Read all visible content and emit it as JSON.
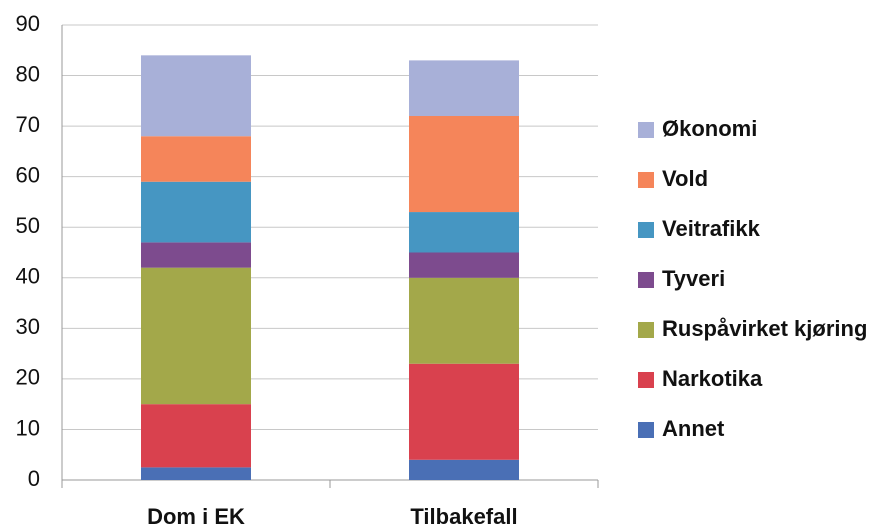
{
  "chart_data": {
    "type": "stacked_bar",
    "categories": [
      "Dom i EK",
      "Tilbakefall"
    ],
    "series": [
      {
        "name": "Annet",
        "color": "#4a6fb5",
        "values": [
          2.5,
          4
        ]
      },
      {
        "name": "Narkotika",
        "color": "#d9414e",
        "values": [
          12.5,
          19
        ]
      },
      {
        "name": "Ruspåvirket kjøring",
        "color": "#a3a84a",
        "values": [
          27,
          17
        ]
      },
      {
        "name": "Tyveri",
        "color": "#7d4b8e",
        "values": [
          5,
          5
        ]
      },
      {
        "name": "Veitrafikk",
        "color": "#4696c2",
        "values": [
          12,
          8
        ]
      },
      {
        "name": "Vold",
        "color": "#f5855a",
        "values": [
          9,
          19
        ]
      },
      {
        "name": "Økonomi",
        "color": "#a8b0d8",
        "values": [
          16,
          11
        ]
      }
    ],
    "ylim": [
      0,
      90
    ],
    "yticks": [
      0,
      10,
      20,
      30,
      40,
      50,
      60,
      70,
      80,
      90
    ],
    "grid": true,
    "legend": "right"
  }
}
